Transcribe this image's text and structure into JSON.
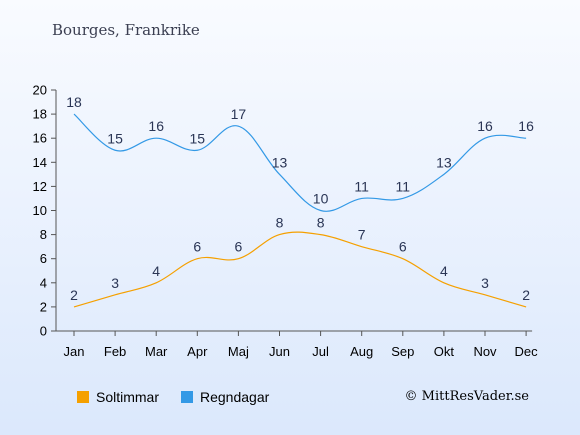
{
  "title": "Bourges, Frankrike",
  "copyright": "© MittResVader.se",
  "chart_data": {
    "type": "line",
    "categories": [
      "Jan",
      "Feb",
      "Mar",
      "Apr",
      "Maj",
      "Jun",
      "Jul",
      "Aug",
      "Sep",
      "Okt",
      "Nov",
      "Dec"
    ],
    "ylim": [
      0,
      20
    ],
    "yticks": [
      0,
      2,
      4,
      6,
      8,
      10,
      12,
      14,
      16,
      18,
      20
    ],
    "series": [
      {
        "name": "Soltimmar",
        "color": "#f5a000",
        "values": [
          2,
          3,
          4,
          6,
          6,
          8,
          8,
          7,
          6,
          4,
          3,
          2
        ]
      },
      {
        "name": "Regndagar",
        "color": "#3399e6",
        "values": [
          18,
          15,
          16,
          15,
          17,
          13,
          10,
          11,
          11,
          13,
          16,
          16
        ]
      }
    ]
  }
}
